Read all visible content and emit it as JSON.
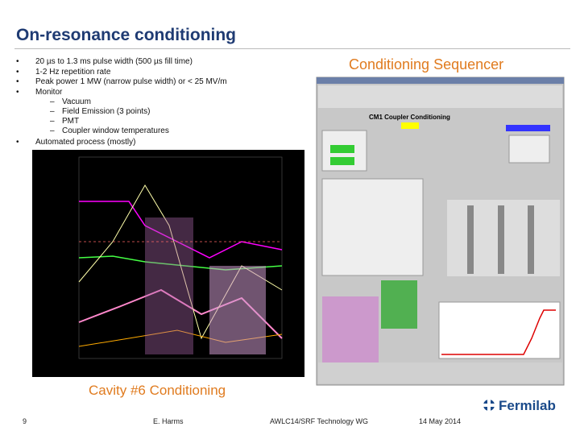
{
  "title": "On-resonance conditioning",
  "bullets": [
    {
      "text": "20 µs to 1.3 ms pulse width (500 µs fill time)"
    },
    {
      "text": "1-2 Hz repetition rate"
    },
    {
      "text": "Peak power 1 MW (narrow pulse width) or < 25 MV/m"
    },
    {
      "text": "Monitor",
      "sub": [
        "Vacuum",
        "Field Emission (3 points)",
        "PMT",
        "Coupler window temperatures"
      ]
    },
    {
      "text": "Automated process (mostly)"
    }
  ],
  "captions": [
    "Conditioning Sequencer",
    "Cavity #6 Conditioning"
  ],
  "gui": {
    "heading": "CM1 Coupler Conditioning"
  },
  "footer": {
    "page": "9",
    "author": "E. Harms",
    "event": "AWLC14/SRF Technology WG",
    "date": "14 May 2014",
    "logo": "Fermilab"
  }
}
